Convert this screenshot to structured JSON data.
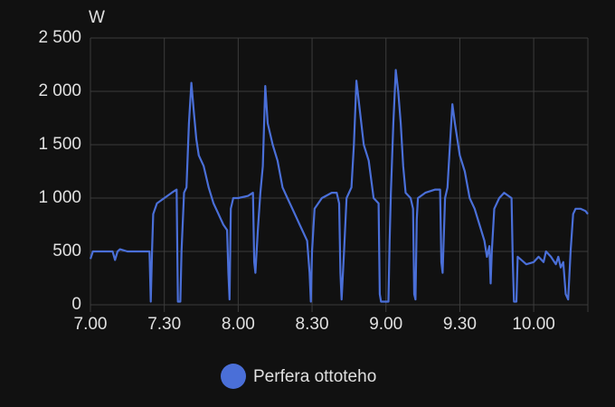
{
  "chart_data": {
    "type": "line",
    "y_unit": "W",
    "xlim": [
      420,
      622
    ],
    "xticks": [
      {
        "value": 420,
        "label": "7.00"
      },
      {
        "value": 450,
        "label": "7.30"
      },
      {
        "value": 480,
        "label": "8.00"
      },
      {
        "value": 510,
        "label": "8.30"
      },
      {
        "value": 540,
        "label": "9.00"
      },
      {
        "value": 570,
        "label": "9.30"
      },
      {
        "value": 600,
        "label": "10.00"
      }
    ],
    "ylim": [
      0,
      2500
    ],
    "yticks": [
      0,
      500,
      {
        "value": 1000,
        "label": "1 000"
      },
      {
        "value": 1500,
        "label": "1 500"
      },
      {
        "value": 2000,
        "label": "2 000"
      },
      {
        "value": 2500,
        "label": "2 500"
      }
    ],
    "grid": true,
    "series": [
      {
        "name": "Perfera ottoteho",
        "color": "#4a6fd8",
        "x": [
          420,
          421,
          425,
          429,
          430,
          431,
          432,
          435,
          440,
          444,
          444.5,
          445,
          445.5,
          447,
          450,
          453,
          455,
          455.5,
          456.5,
          457,
          458,
          459,
          460,
          461,
          462,
          463,
          464,
          466,
          468,
          470,
          472,
          474,
          475.5,
          476,
          476.5,
          477,
          478,
          480,
          484,
          486,
          486.5,
          487,
          488,
          489,
          490,
          491,
          492,
          494,
          496,
          498,
          500,
          503,
          505,
          507,
          508,
          509,
          509.5,
          510,
          511,
          514,
          518,
          520,
          521,
          521.5,
          522,
          523,
          524,
          526,
          527,
          528,
          529,
          531,
          533,
          535,
          537,
          537.5,
          538,
          541,
          541.5,
          542,
          543,
          544,
          545,
          546,
          547,
          548,
          550,
          551,
          551.5,
          552,
          552.5,
          553,
          556,
          560,
          562,
          562.5,
          563,
          564,
          565,
          566,
          567,
          568,
          570,
          572,
          574,
          576,
          578,
          580,
          581,
          582,
          582.5,
          583,
          584,
          586,
          588,
          591,
          591.5,
          592,
          593,
          593.5,
          595,
          597,
          600,
          602,
          604,
          605,
          607,
          609,
          610,
          611,
          612,
          613,
          614,
          615,
          616,
          617,
          619,
          621,
          622
        ],
        "values": [
          430,
          500,
          500,
          500,
          420,
          500,
          520,
          500,
          500,
          500,
          30,
          500,
          850,
          950,
          1000,
          1050,
          1080,
          30,
          30,
          500,
          1050,
          1100,
          1700,
          2080,
          1800,
          1550,
          1400,
          1300,
          1100,
          950,
          850,
          750,
          700,
          300,
          50,
          900,
          1000,
          1000,
          1020,
          1050,
          400,
          300,
          700,
          1050,
          1300,
          2050,
          1700,
          1500,
          1350,
          1100,
          1000,
          850,
          750,
          650,
          600,
          300,
          30,
          500,
          900,
          1000,
          1050,
          1050,
          950,
          300,
          50,
          500,
          1000,
          1100,
          1500,
          2100,
          1900,
          1500,
          1350,
          1000,
          950,
          100,
          30,
          30,
          600,
          1050,
          1700,
          2200,
          2000,
          1700,
          1300,
          1050,
          1000,
          900,
          100,
          50,
          800,
          1000,
          1050,
          1080,
          1080,
          400,
          300,
          1000,
          1100,
          1500,
          1880,
          1700,
          1400,
          1250,
          1000,
          900,
          750,
          600,
          450,
          550,
          200,
          500,
          900,
          1000,
          1050,
          1000,
          400,
          30,
          30,
          450,
          420,
          380,
          400,
          450,
          400,
          500,
          450,
          380,
          450,
          350,
          400,
          100,
          50,
          500,
          850,
          900,
          900,
          880,
          850
        ]
      }
    ]
  }
}
